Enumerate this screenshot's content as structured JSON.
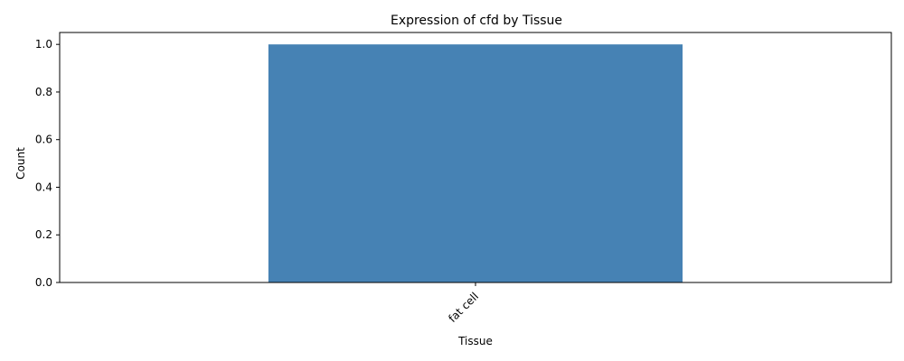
{
  "chart_data": {
    "type": "bar",
    "title": "Expression of cfd by Tissue",
    "xlabel": "Tissue",
    "ylabel": "Count",
    "categories": [
      "fat cell"
    ],
    "values": [
      1.0
    ],
    "ylim": [
      0,
      1.05
    ],
    "yticks": [
      "0.0",
      "0.2",
      "0.4",
      "0.6",
      "0.8",
      "1.0"
    ],
    "grid": false,
    "legend": "none",
    "colors": {
      "bar": "#4682b4"
    }
  }
}
